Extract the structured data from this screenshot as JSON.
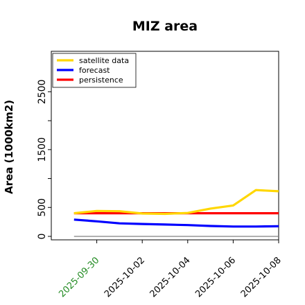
{
  "chart_data": {
    "type": "line",
    "title": "MIZ area",
    "ylabel": "Area (1000km2)",
    "xlabel": "",
    "x": [
      "2025-09-29",
      "2025-09-30",
      "2025-10-01",
      "2025-10-02",
      "2025-10-03",
      "2025-10-04",
      "2025-10-05",
      "2025-10-06",
      "2025-10-07",
      "2025-10-08"
    ],
    "xticks": [
      "2025-09-30",
      "2025-10-02",
      "2025-10-04",
      "2025-10-06",
      "2025-10-08"
    ],
    "xtick_colors": [
      "#228B22",
      "#000000",
      "#000000",
      "#000000",
      "#000000"
    ],
    "xlim": [
      "2025-09-28",
      "2025-10-08"
    ],
    "ylim": [
      -60,
      3200
    ],
    "yticks": [
      0,
      500,
      1500,
      2500
    ],
    "legend_position": "top-left",
    "grid": false,
    "series": [
      {
        "name": "satellite data",
        "color": "#FFD700",
        "values": [
          400,
          440,
          435,
          395,
          390,
          405,
          480,
          535,
          800,
          780
        ]
      },
      {
        "name": "forecast",
        "color": "#0000FF",
        "values": [
          290,
          260,
          225,
          215,
          205,
          195,
          180,
          170,
          170,
          175
        ]
      },
      {
        "name": "persistence",
        "color": "#FF0000",
        "values": [
          400,
          400,
          400,
          400,
          400,
          400,
          400,
          400,
          400,
          400
        ]
      },
      {
        "name": "",
        "color": "#808080",
        "values": [
          0,
          0,
          0,
          0,
          0,
          0,
          0,
          0,
          0,
          0
        ]
      }
    ]
  }
}
